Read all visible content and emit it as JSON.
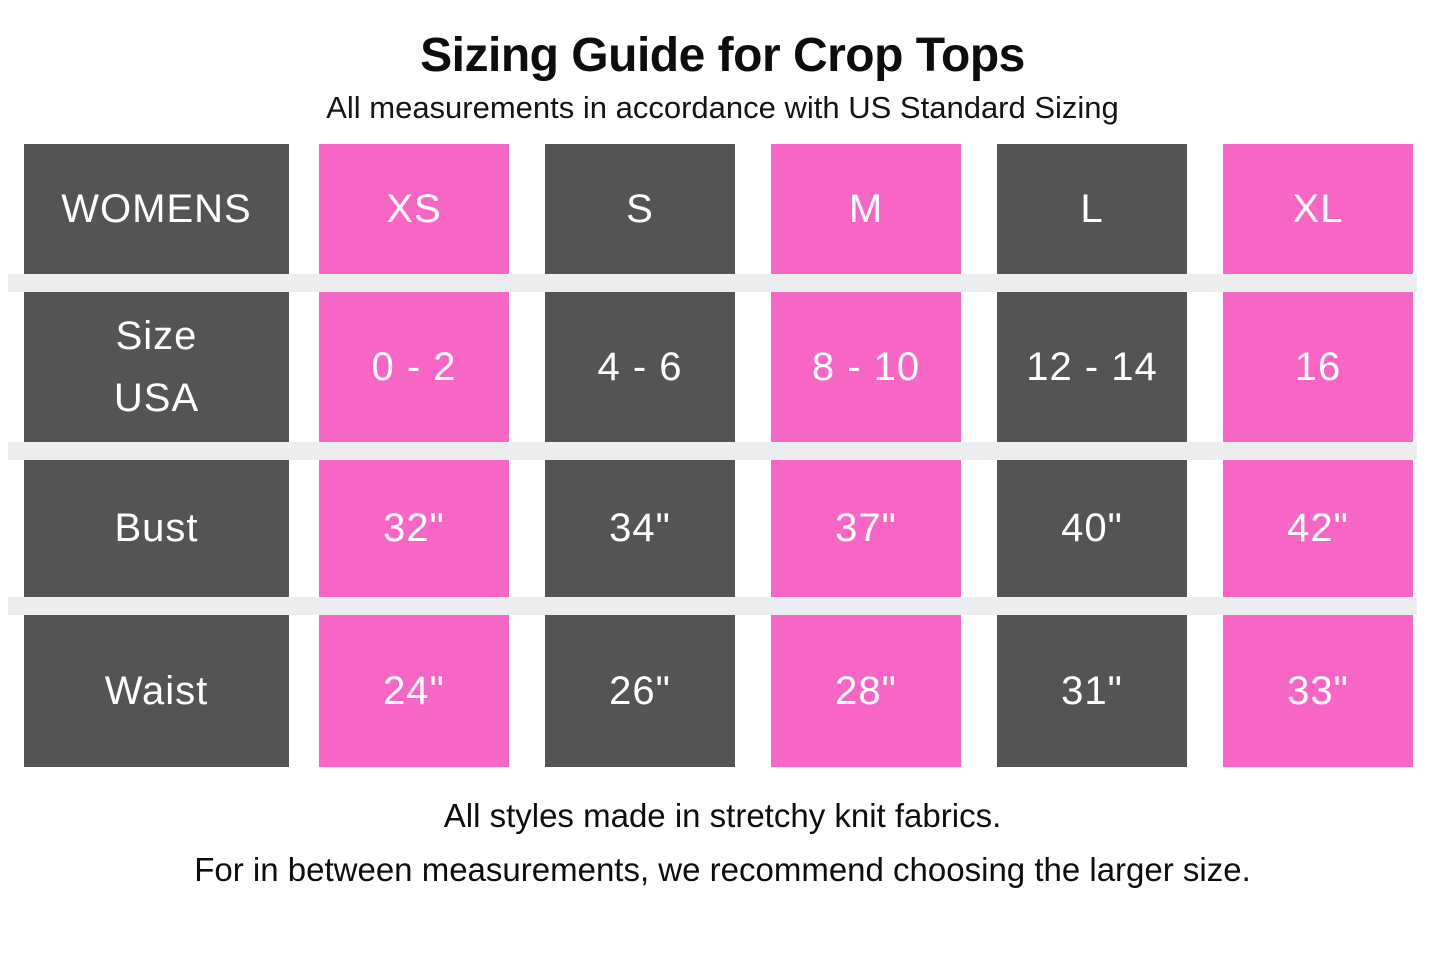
{
  "title": "Sizing Guide for Crop Tops",
  "subtitle": "All measurements in accordance with US Standard Sizing",
  "footer": {
    "line1": "All styles made in stretchy knit fabrics.",
    "line2": "For in between measurements, we recommend choosing the larger size."
  },
  "colors": {
    "dark_cell": "#545454",
    "pink_cell": "#F766C4",
    "separator_band": "#ECEDEF",
    "cell_text": "#FFFFFF",
    "body_text": "#0D0D0D"
  },
  "chart_data": {
    "type": "table",
    "title": "Sizing Guide for Crop Tops",
    "columns": [
      "WOMENS",
      "XS",
      "S",
      "M",
      "L",
      "XL"
    ],
    "rows": [
      {
        "label": "Size USA",
        "label_lines": [
          "Size",
          "USA"
        ],
        "values": [
          "0 - 2",
          "4 - 6",
          "8 - 10",
          "12 - 14",
          "16"
        ]
      },
      {
        "label": "Bust",
        "label_lines": [
          "Bust"
        ],
        "values": [
          "32\"",
          "34\"",
          "37\"",
          "40\"",
          "42\""
        ]
      },
      {
        "label": "Waist",
        "label_lines": [
          "Waist"
        ],
        "values": [
          "24\"",
          "26\"",
          "28\"",
          "31\"",
          "33\""
        ]
      }
    ]
  }
}
